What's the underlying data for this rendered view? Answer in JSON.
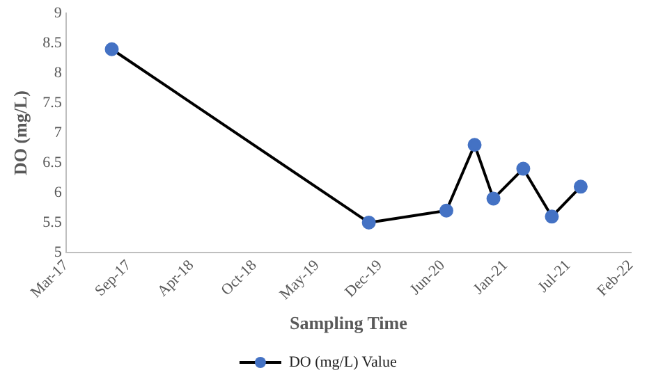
{
  "chart_data": {
    "type": "line",
    "xlabel": "Sampling Time",
    "ylabel": "DO (mg/L)",
    "x": [
      "2017-08-03",
      "2019-10-31",
      "2020-07-04",
      "2020-10-02",
      "2020-12-01",
      "2021-03-06",
      "2021-06-05",
      "2021-09-05"
    ],
    "series": [
      {
        "name": "DO (mg/L) Value",
        "color": "#000000",
        "colors": [
          "#4472c4",
          "#4472c4",
          "#4472c4",
          "#4472c4",
          "#4472c4",
          "#4472c4",
          "#4472c4",
          "#4472c4"
        ],
        "values": [
          8.4,
          5.5,
          5.7,
          6.8,
          5.9,
          6.4,
          5.6,
          6.1
        ]
      }
    ],
    "xlim": [
      "2017-03-10",
      "2022-02-12"
    ],
    "xticks": [
      {
        "value": "2017-03-10",
        "label": "Mar-17"
      },
      {
        "value": "2017-09-26",
        "label": "Sep-17"
      },
      {
        "value": "2018-04-14",
        "label": "Apr-18"
      },
      {
        "value": "2018-10-31",
        "label": "Oct-18"
      },
      {
        "value": "2019-05-19",
        "label": "May-19"
      },
      {
        "value": "2019-12-05",
        "label": "Dec-19"
      },
      {
        "value": "2020-06-22",
        "label": "Jun-20"
      },
      {
        "value": "2021-01-08",
        "label": "Jan-21"
      },
      {
        "value": "2021-07-27",
        "label": "Jul-21"
      },
      {
        "value": "2022-02-12",
        "label": "Feb-22"
      }
    ],
    "ylim": [
      5,
      9
    ],
    "yticks": [
      5,
      5.5,
      6,
      6.5,
      7,
      7.5,
      8,
      8.5,
      9
    ],
    "grid": false,
    "legend": "bottom",
    "marker": "circle",
    "line_style": "solid"
  }
}
